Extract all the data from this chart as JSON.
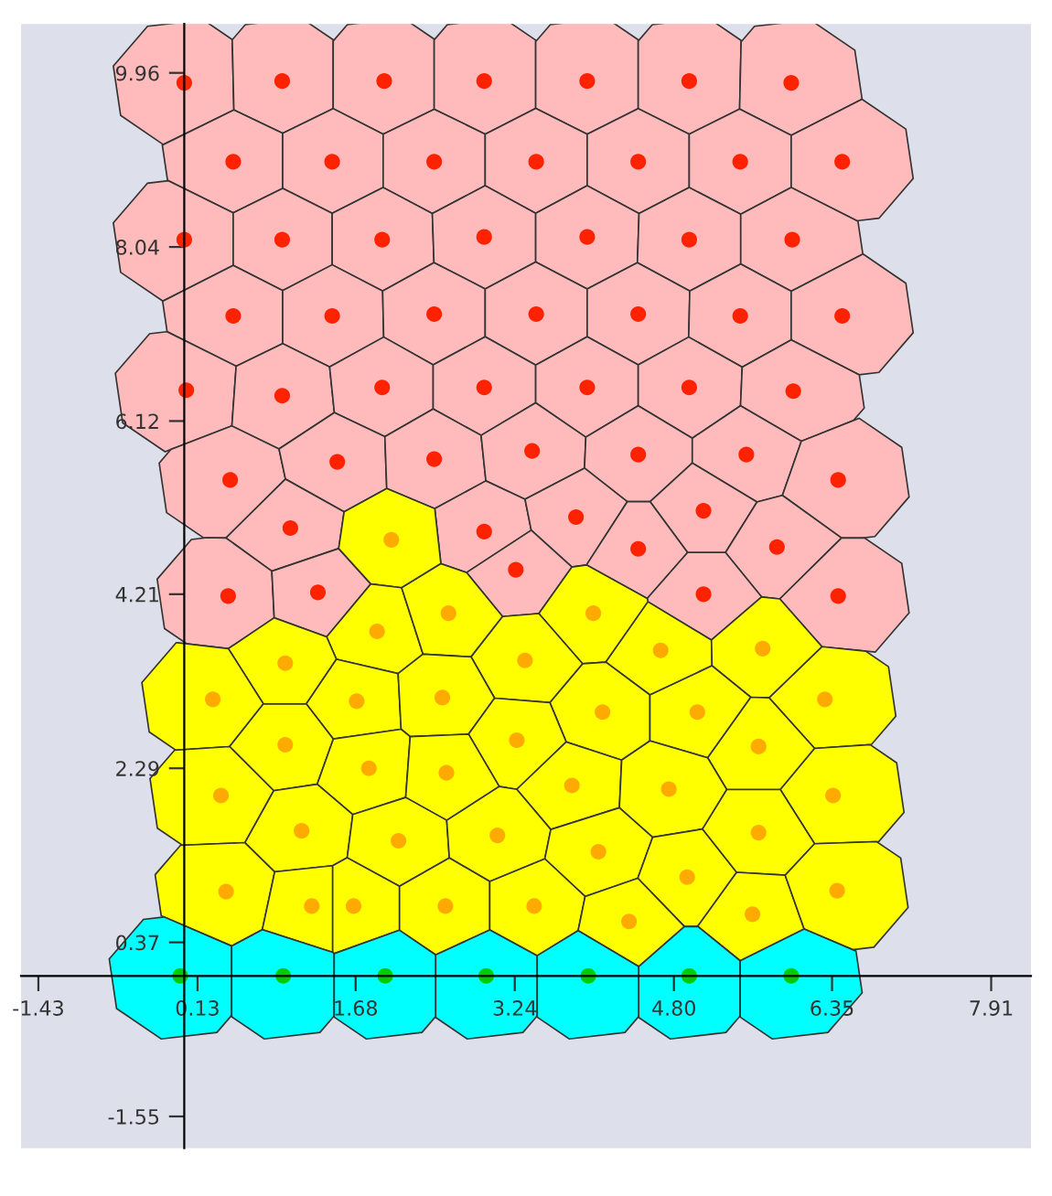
{
  "chart_data": {
    "type": "scatter",
    "marker": "circle",
    "grid": false,
    "legend": false,
    "xlim": [
      -1.6,
      8.3
    ],
    "ylim": [
      -1.9,
      10.5
    ],
    "xticks": [
      -1.43,
      0.13,
      1.68,
      3.24,
      {
        "value": 4.8,
        "label": "4.80"
      },
      6.35,
      7.91
    ],
    "yticks": [
      -1.55,
      0.37,
      2.29,
      4.21,
      6.12,
      8.04,
      9.96
    ],
    "series": [
      {
        "color": "#ff2200",
        "x": [
          0,
          0.96,
          1.96,
          2.94,
          3.95,
          4.95,
          5.95,
          0.48,
          1.45,
          2.45,
          3.45,
          4.45,
          5.45,
          6.45,
          0,
          0.96,
          1.94,
          2.94,
          3.95,
          4.95,
          5.96,
          0.48,
          1.45,
          2.45,
          3.45,
          4.45,
          5.45,
          6.45,
          0.02,
          0.96,
          1.94,
          2.94,
          3.95,
          4.95,
          5.97,
          0.45,
          1.5,
          2.45,
          3.41,
          4.45,
          5.51,
          6.41,
          1.04,
          2.94,
          3.84,
          5.09,
          4.45,
          5.81,
          3.25,
          5.09,
          6.41,
          0.43,
          1.31
        ],
        "values": [
          9.85,
          9.87,
          9.87,
          9.87,
          9.87,
          9.87,
          9.85,
          8.98,
          8.98,
          8.98,
          8.98,
          8.98,
          8.98,
          8.98,
          8.12,
          8.12,
          8.12,
          8.15,
          8.15,
          8.12,
          8.12,
          7.28,
          7.28,
          7.3,
          7.3,
          7.3,
          7.28,
          7.28,
          6.46,
          6.4,
          6.49,
          6.49,
          6.49,
          6.49,
          6.45,
          5.47,
          5.67,
          5.7,
          5.79,
          5.75,
          5.75,
          5.47,
          4.94,
          4.9,
          5.06,
          5.13,
          4.71,
          4.73,
          4.48,
          4.21,
          4.19,
          4.19,
          4.23
        ]
      },
      {
        "color": "#ffaa00",
        "x": [
          2.03,
          1.89,
          2.59,
          4.01,
          4.67,
          5.67,
          3.34,
          0.99,
          0.28,
          1.69,
          2.53,
          4.1,
          5.03,
          6.28,
          0.99,
          3.26,
          5.63,
          0.36,
          1.81,
          2.57,
          3.8,
          4.75,
          6.36,
          1.15,
          2.1,
          3.07,
          4.06,
          4.93,
          5.63,
          0.41,
          1.25,
          1.66,
          2.56,
          3.43,
          4.36,
          5.57,
          6.4
        ],
        "values": [
          4.81,
          3.8,
          4.0,
          4.0,
          3.59,
          3.61,
          3.48,
          3.45,
          3.05,
          3.03,
          3.07,
          2.91,
          2.91,
          3.05,
          2.55,
          2.6,
          2.53,
          1.99,
          2.29,
          2.24,
          2.1,
          2.06,
          1.99,
          1.6,
          1.49,
          1.55,
          1.37,
          1.09,
          1.58,
          0.93,
          0.77,
          0.77,
          0.77,
          0.77,
          0.6,
          0.68,
          0.94
        ]
      },
      {
        "color": "#00cc00",
        "x": [
          -0.04,
          0.97,
          1.97,
          2.96,
          3.96,
          4.95,
          5.95
        ],
        "values": [
          0,
          0,
          0,
          0,
          0,
          0,
          0
        ]
      }
    ]
  }
}
